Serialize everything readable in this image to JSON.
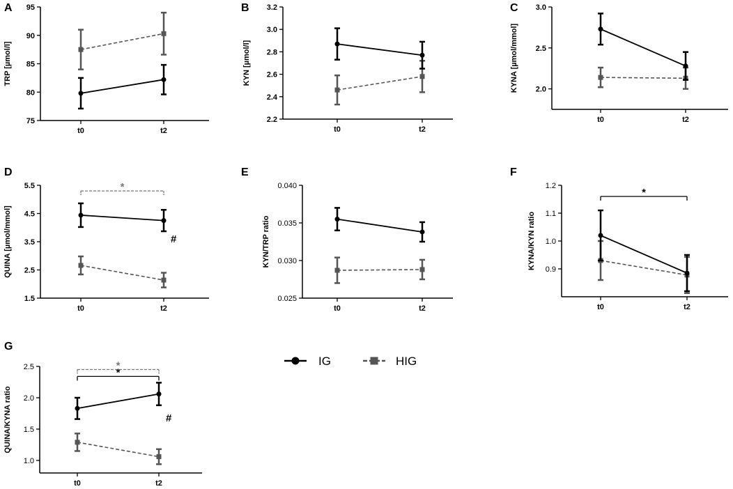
{
  "legend": {
    "ig": {
      "label": "IG",
      "color": "#000000",
      "marker": "circle",
      "line": "solid"
    },
    "hig": {
      "label": "HIG",
      "color": "#555555",
      "marker": "square",
      "line": "dashed"
    }
  },
  "colors": {
    "ig": "#000000",
    "hig": "#555555",
    "sig_hig": "#777777"
  },
  "chart_data": [
    {
      "panel": "A",
      "type": "line",
      "ylabel": "TRP [µmol/l]",
      "bold_ticks": true,
      "categories": [
        "t0",
        "t2"
      ],
      "ylim": [
        75,
        95
      ],
      "yticks": [
        75,
        80,
        85,
        90,
        95
      ],
      "ytick_labels": [
        "75",
        "80",
        "85",
        "90",
        "95"
      ],
      "series": [
        {
          "name": "IG",
          "values": [
            79.8,
            82.2
          ],
          "err": [
            2.7,
            2.6
          ]
        },
        {
          "name": "HIG",
          "values": [
            87.5,
            90.3
          ],
          "err": [
            3.5,
            3.7
          ]
        }
      ],
      "brackets": [],
      "hash": null
    },
    {
      "panel": "B",
      "type": "line",
      "ylabel": "KYN [µmol/l]",
      "bold_ticks": true,
      "categories": [
        "t0",
        "t2"
      ],
      "ylim": [
        2.2,
        3.2
      ],
      "yticks": [
        2.2,
        2.4,
        2.6,
        2.8,
        3.0,
        3.2
      ],
      "ytick_labels": [
        "2.2",
        "2.4",
        "2.6",
        "2.8",
        "3.0",
        "3.2"
      ],
      "series": [
        {
          "name": "IG",
          "values": [
            2.87,
            2.77
          ],
          "err": [
            0.14,
            0.12
          ]
        },
        {
          "name": "HIG",
          "values": [
            2.46,
            2.58
          ],
          "err": [
            0.13,
            0.14
          ]
        }
      ],
      "brackets": [],
      "hash": null
    },
    {
      "panel": "C",
      "type": "line",
      "ylabel": "KYNA [µmol/mmol]",
      "bold_ticks": true,
      "categories": [
        "t0",
        "t2"
      ],
      "ylim": [
        1.75,
        3.0
      ],
      "yticks": [
        2.0,
        2.5,
        3.0
      ],
      "ytick_labels": [
        "2.0",
        "2.5",
        "3.0"
      ],
      "series": [
        {
          "name": "IG",
          "values": [
            2.73,
            2.28
          ],
          "err": [
            0.19,
            0.17
          ]
        },
        {
          "name": "HIG",
          "values": [
            2.14,
            2.13
          ],
          "err": [
            0.12,
            0.13
          ]
        }
      ],
      "brackets": [],
      "hash": null
    },
    {
      "panel": "D",
      "type": "line",
      "ylabel": "QUINA [µmol/mmol]",
      "bold_ticks": true,
      "categories": [
        "t0",
        "t2"
      ],
      "ylim": [
        1.5,
        5.5
      ],
      "yticks": [
        1.5,
        2.5,
        3.5,
        4.5,
        5.5
      ],
      "ytick_labels": [
        "1.5",
        "2.5",
        "3.5",
        "4.5",
        "5.5"
      ],
      "series": [
        {
          "name": "IG",
          "values": [
            4.44,
            4.25
          ],
          "err": [
            0.42,
            0.38
          ]
        },
        {
          "name": "HIG",
          "values": [
            2.66,
            2.14
          ],
          "err": [
            0.32,
            0.26
          ]
        }
      ],
      "brackets": [
        {
          "series": "HIG",
          "star": "*",
          "level": 5.3
        }
      ],
      "hash": {
        "text": "#",
        "at": 3.6
      }
    },
    {
      "panel": "E",
      "type": "line",
      "ylabel": "KYN/TRP ratio",
      "bold_ticks": false,
      "categories": [
        "t0",
        "t2"
      ],
      "ylim": [
        0.025,
        0.04
      ],
      "yticks": [
        0.025,
        0.03,
        0.035,
        0.04
      ],
      "ytick_labels": [
        "0.025",
        "0.030",
        "0.035",
        "0.040"
      ],
      "series": [
        {
          "name": "IG",
          "values": [
            0.0355,
            0.0338
          ],
          "err": [
            0.0015,
            0.0013
          ]
        },
        {
          "name": "HIG",
          "values": [
            0.0287,
            0.0288
          ],
          "err": [
            0.0017,
            0.0013
          ]
        }
      ],
      "brackets": [],
      "hash": null
    },
    {
      "panel": "F",
      "type": "line",
      "ylabel": "KYNA/KYN ratio",
      "bold_ticks": false,
      "categories": [
        "t0",
        "t2"
      ],
      "ylim": [
        0.8,
        1.2
      ],
      "yticks": [
        0.9,
        1.0,
        1.1,
        1.2
      ],
      "ytick_labels": [
        "0.9",
        "1.0",
        "1.1",
        "1.2"
      ],
      "series": [
        {
          "name": "IG",
          "values": [
            1.02,
            0.885
          ],
          "err": [
            0.09,
            0.065
          ]
        },
        {
          "name": "HIG",
          "values": [
            0.93,
            0.878
          ],
          "err": [
            0.07,
            0.065
          ]
        }
      ],
      "brackets": [
        {
          "series": "IG",
          "star": "*",
          "level": 1.16
        }
      ],
      "hash": null
    },
    {
      "panel": "G",
      "type": "line",
      "ylabel": "QUINA/KYNA ratio",
      "bold_ticks": false,
      "categories": [
        "t0",
        "t2"
      ],
      "ylim": [
        0.8,
        2.5
      ],
      "yticks": [
        1.0,
        1.5,
        2.0,
        2.5
      ],
      "ytick_labels": [
        "1.0",
        "1.5",
        "2.0",
        "2.5"
      ],
      "series": [
        {
          "name": "IG",
          "values": [
            1.83,
            2.06
          ],
          "err": [
            0.17,
            0.18
          ]
        },
        {
          "name": "HIG",
          "values": [
            1.29,
            1.06
          ],
          "err": [
            0.14,
            0.12
          ]
        }
      ],
      "brackets": [
        {
          "series": "HIG",
          "star": "*",
          "level": 2.45
        },
        {
          "series": "IG",
          "star": "*",
          "level": 2.34
        }
      ],
      "hash": {
        "text": "#",
        "at": 1.68
      }
    }
  ]
}
